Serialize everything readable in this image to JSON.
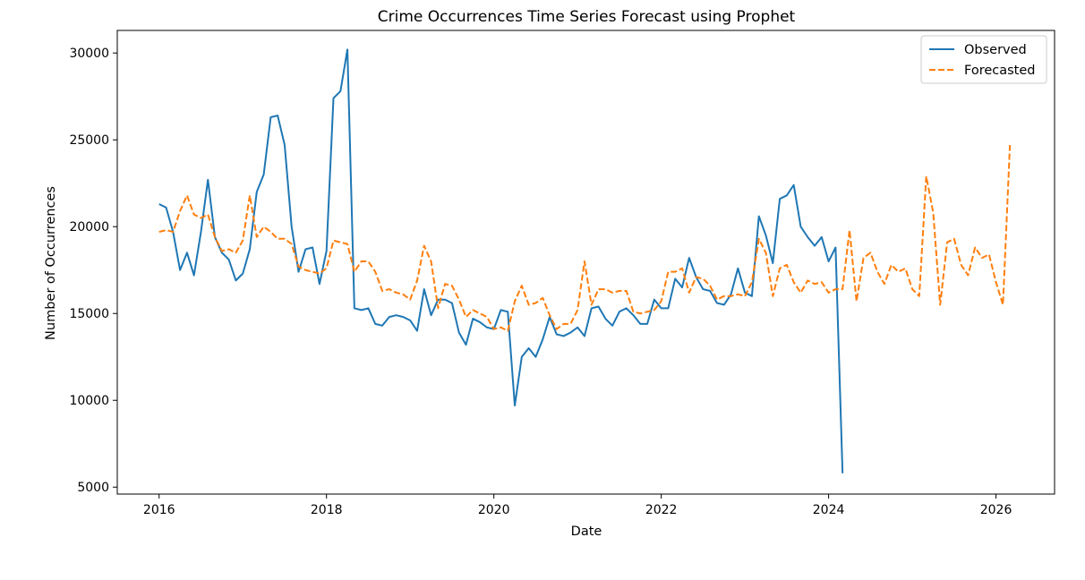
{
  "chart_data": {
    "type": "line",
    "title": "Crime Occurrences Time Series Forecast using Prophet",
    "xlabel": "Date",
    "ylabel": "Number of Occurrences",
    "xlim": [
      2015.5,
      2026.7
    ],
    "ylim": [
      4600,
      31300
    ],
    "x_ticks": [
      2016,
      2018,
      2020,
      2022,
      2024,
      2026
    ],
    "x_tick_labels": [
      "2016",
      "2018",
      "2020",
      "2022",
      "2024",
      "2026"
    ],
    "y_ticks": [
      5000,
      10000,
      15000,
      20000,
      25000,
      30000
    ],
    "y_tick_labels": [
      "5000",
      "10000",
      "15000",
      "20000",
      "25000",
      "30000"
    ],
    "grid": false,
    "legend_position": "top-right",
    "series": [
      {
        "name": "Observed",
        "color": "#1f77b4",
        "style": "solid",
        "start": "2016-01",
        "frequency": "monthly",
        "values": [
          21300,
          21100,
          19700,
          17500,
          18500,
          17200,
          19700,
          22700,
          19400,
          18500,
          18100,
          16900,
          17300,
          18700,
          22000,
          23000,
          26300,
          26400,
          24700,
          20000,
          17400,
          18700,
          18800,
          16700,
          18600,
          27400,
          27800,
          30200,
          15300,
          15200,
          15300,
          14400,
          14300,
          14800,
          14900,
          14800,
          14600,
          14000,
          16400,
          14900,
          15800,
          15800,
          15600,
          13900,
          13200,
          14700,
          14500,
          14200,
          14100,
          15200,
          15100,
          9700,
          12500,
          13000,
          12500,
          13500,
          14800,
          13800,
          13700,
          13900,
          14200,
          13700,
          15300,
          15400,
          14700,
          14300,
          15100,
          15300,
          14900,
          14400,
          14400,
          15800,
          15300,
          15300,
          17000,
          16500,
          18200,
          17100,
          16400,
          16300,
          15600,
          15500,
          16100,
          17600,
          16200,
          16000,
          20600,
          19500,
          17900,
          21600,
          21800,
          22400,
          20000,
          19400,
          18900,
          19400,
          18000,
          18800,
          5800
        ]
      },
      {
        "name": "Forecasted",
        "color": "#ff7f0e",
        "style": "dashed",
        "start": "2016-01",
        "frequency": "monthly",
        "values": [
          19700,
          19800,
          19700,
          20900,
          21800,
          20700,
          20500,
          20700,
          19400,
          18600,
          18700,
          18500,
          19200,
          21800,
          19400,
          20000,
          19700,
          19300,
          19300,
          19000,
          17700,
          17500,
          17400,
          17300,
          17600,
          19200,
          19100,
          19000,
          17400,
          18000,
          18000,
          17400,
          16300,
          16400,
          16200,
          16100,
          15800,
          16900,
          18900,
          18000,
          15300,
          16700,
          16600,
          15800,
          14800,
          15200,
          15000,
          14800,
          14100,
          14200,
          14000,
          15700,
          16600,
          15500,
          15600,
          15900,
          14900,
          14100,
          14400,
          14400,
          15200,
          18000,
          15500,
          16400,
          16400,
          16200,
          16300,
          16300,
          15100,
          15000,
          15100,
          15200,
          15700,
          17400,
          17400,
          17600,
          16200,
          17100,
          17000,
          16600,
          15800,
          16000,
          16000,
          16100,
          16000,
          16800,
          19300,
          18500,
          16000,
          17600,
          17800,
          16800,
          16200,
          16900,
          16700,
          16800,
          16200,
          16400,
          16400,
          19800,
          15700,
          18200,
          18500,
          17400,
          16700,
          17800,
          17400,
          17600,
          16400,
          16000,
          22900,
          20800,
          15500,
          19100,
          19300,
          17800,
          17200,
          18800,
          18200,
          18400,
          16800,
          15500,
          24700
        ]
      }
    ]
  }
}
